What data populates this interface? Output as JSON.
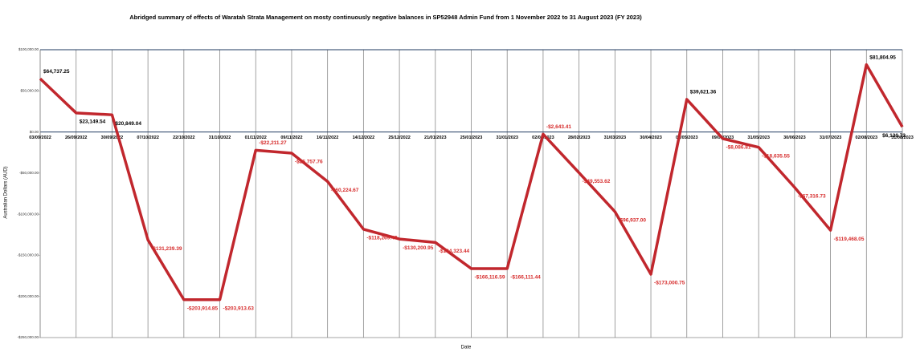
{
  "chart_data": {
    "type": "line",
    "title": "Abridged summary of effects of Waratah Strata Management on mosty continuously negative balances in SP52948 Admin Fund from 1 November 2022 to 31 August 2023 (FY 2023)",
    "x_label": "Date",
    "y_label": "Australian Dollars (AUD)",
    "categories": [
      "03/09/2022",
      "26/09/2022",
      "30/09/2022",
      "07/10/2022",
      "22/10/2022",
      "31/10/2022",
      "01/11/2022",
      "09/11/2022",
      "16/11/2022",
      "14/12/2022",
      "25/12/2022",
      "21/01/2023",
      "25/01/2023",
      "31/01/2023",
      "02/02/2023",
      "28/02/2023",
      "31/03/2023",
      "30/04/2023",
      "01/05/2023",
      "09/05/2023",
      "31/05/2023",
      "30/06/2023",
      "31/07/2023",
      "02/08/2023",
      "31/08/2023"
    ],
    "values": [
      64737.25,
      23149.54,
      20849.04,
      -131239.39,
      -203914.85,
      -203913.63,
      -22211.27,
      -25757.76,
      -60224.67,
      -118269.42,
      -130200.95,
      -134323.44,
      -166116.59,
      -166111.44,
      -2643.41,
      -49553.62,
      -96937.0,
      -173000.75,
      39621.36,
      -8086.81,
      -18635.55,
      -67316.73,
      -119468.05,
      81804.95,
      6120.73
    ],
    "value_labels": [
      "$64,737.25",
      "$23,149.54",
      "$20,849.04",
      "-$131,239.39",
      "-$203,914.85",
      "-$203,913.63",
      "-$22,211.27",
      "-$25,757.76",
      "-$60,224.67",
      "-$118,269.42",
      "-$130,200.95",
      "-$134,323.44",
      "-$166,116.59",
      "-$166,111.44",
      "-$2,643.41",
      "-$49,553.62",
      "-$96,937.00",
      "-$173,000.75",
      "$39,621.36",
      "-$8,086.81",
      "-$18,635.55",
      "-$67,316.73",
      "-$119,468.05",
      "$81,804.95",
      "$6,120.73"
    ],
    "color": "#c1272d",
    "ylim": [
      -250000,
      100000
    ],
    "yticks": [
      {
        "value": -250000,
        "label": "-$250,000.00"
      },
      {
        "value": -200000,
        "label": "-$200,000.00"
      },
      {
        "value": -150000,
        "label": "-$150,000.00"
      },
      {
        "value": -100000,
        "label": "-$100,000.00"
      },
      {
        "value": -50000,
        "label": "-$50,000.00"
      },
      {
        "value": 0,
        "label": "$0.00"
      },
      {
        "value": 50000,
        "label": "$50,000.00"
      },
      {
        "value": 100000,
        "label": "$100,000.00"
      }
    ],
    "grid": true
  }
}
